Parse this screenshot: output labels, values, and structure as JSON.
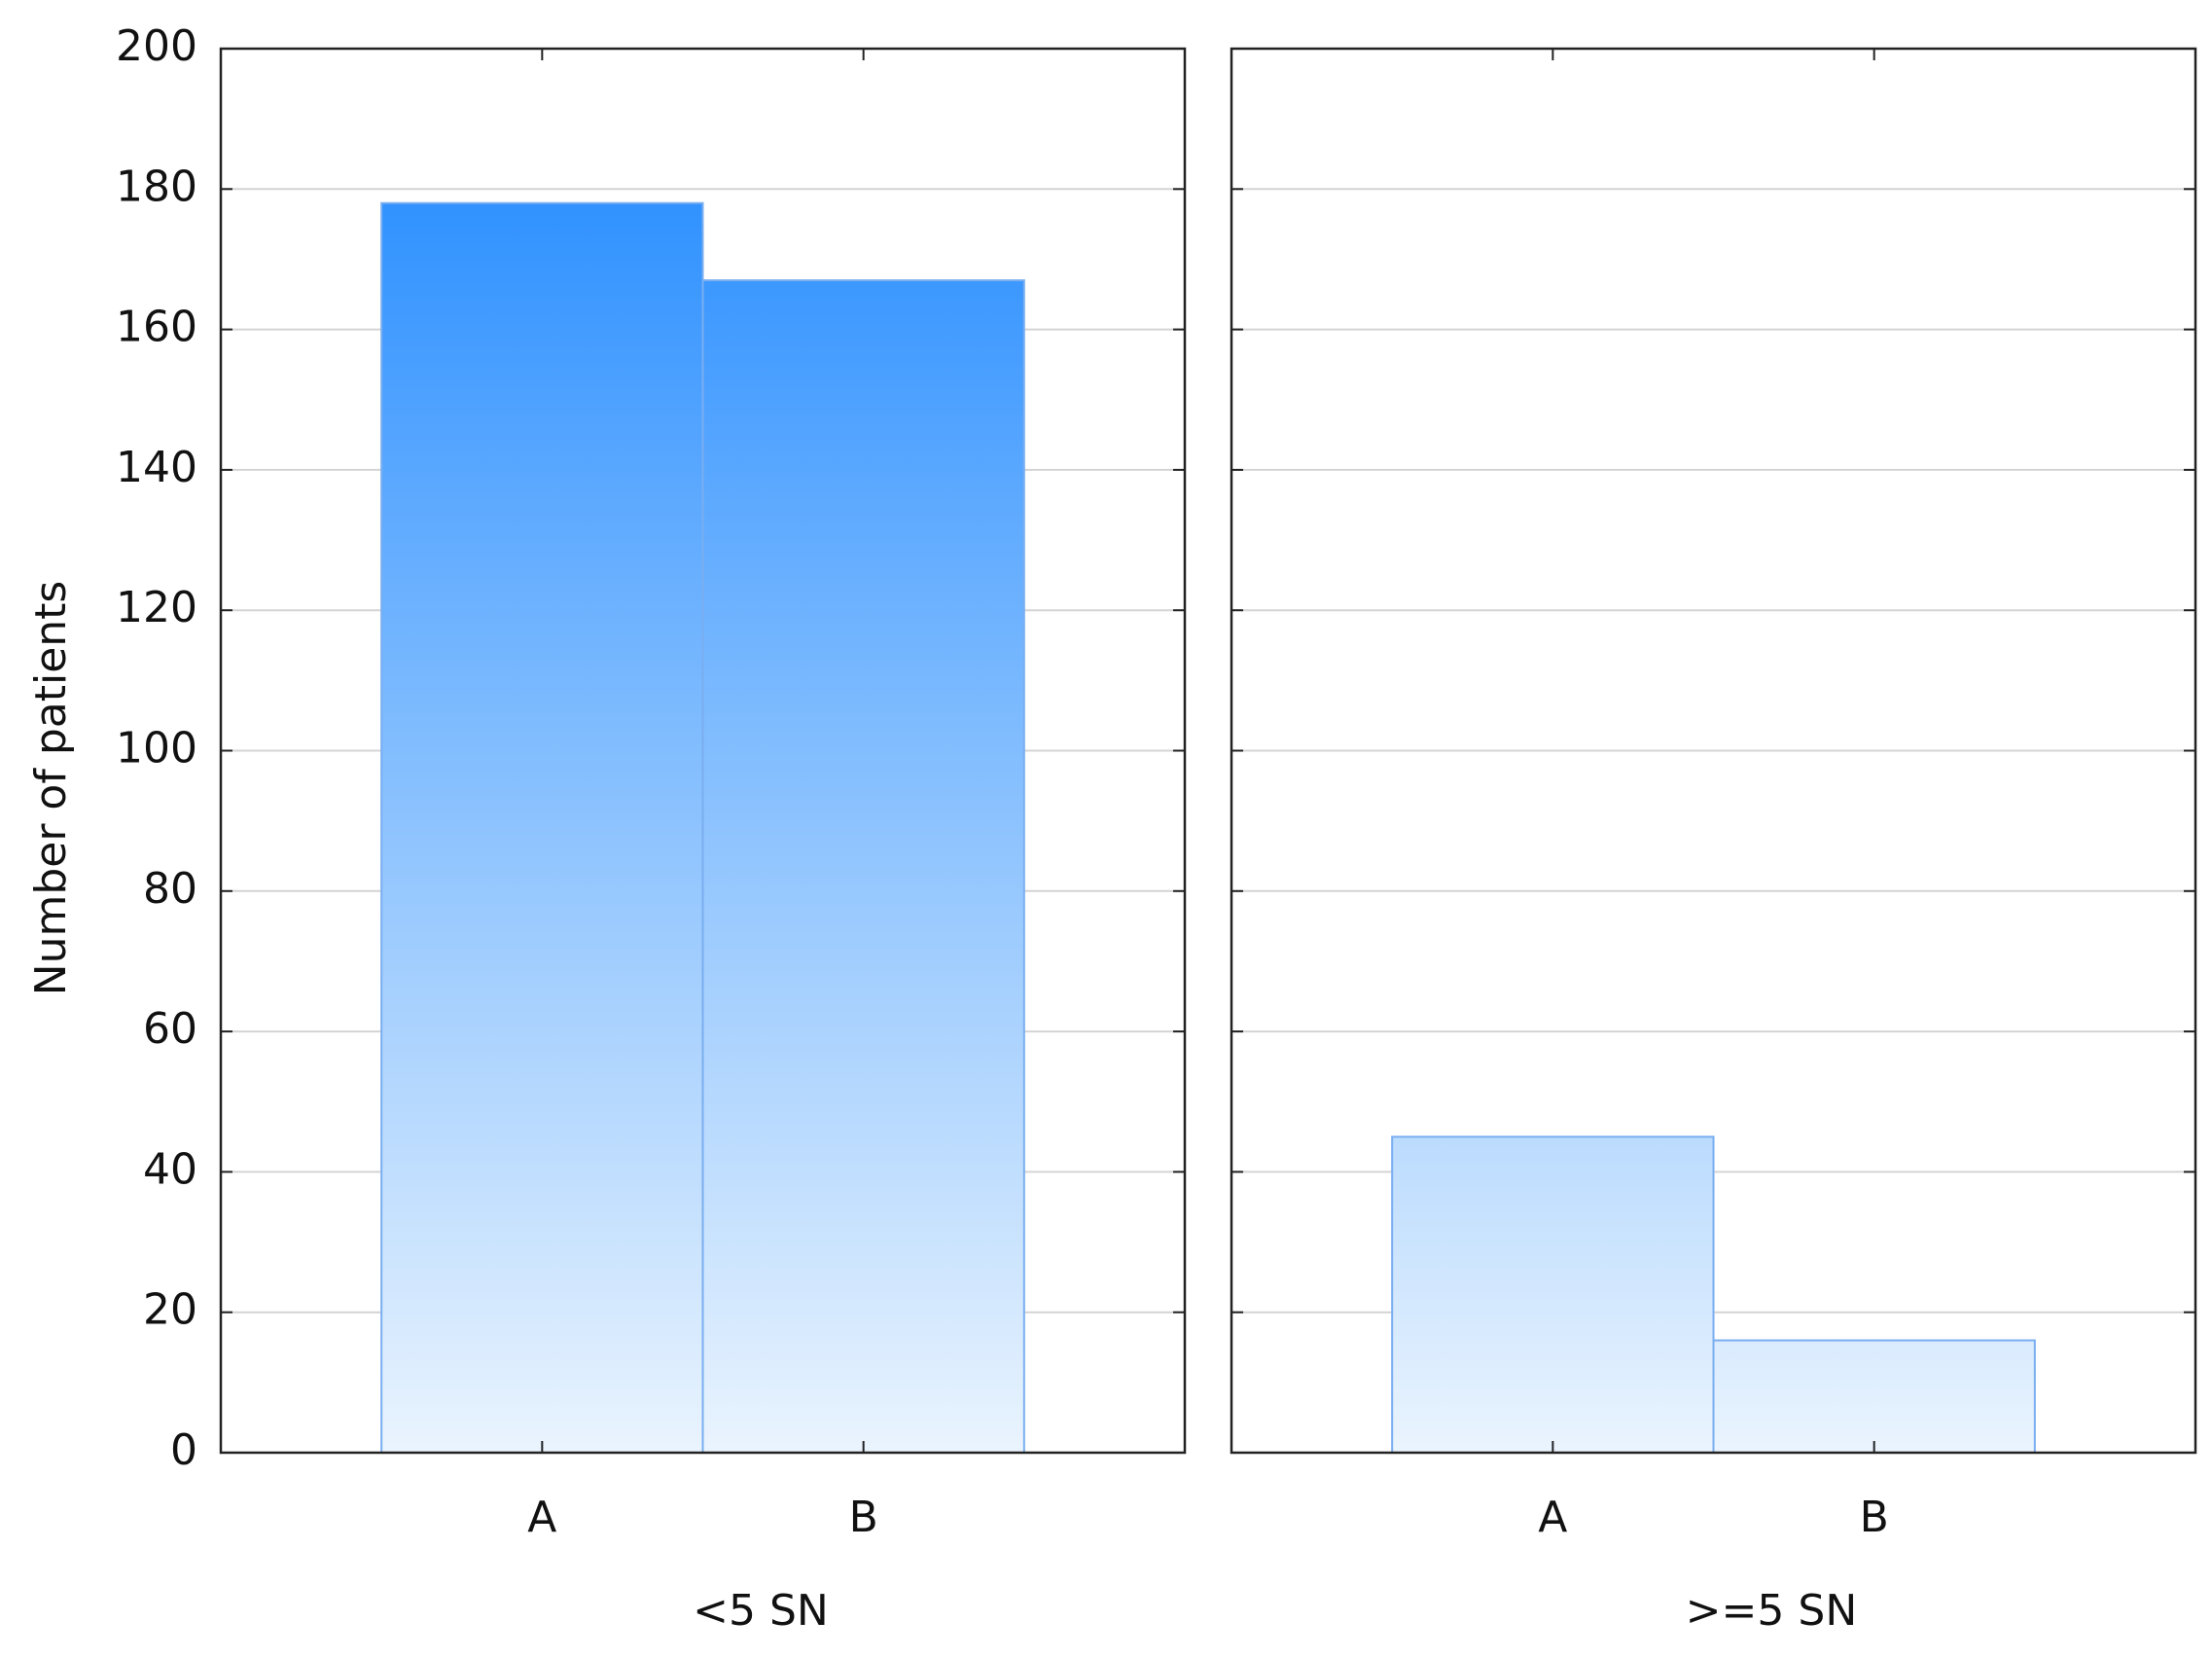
{
  "chart_data": {
    "type": "bar",
    "ylabel": "Number of patients",
    "ylim": [
      0,
      200
    ],
    "yticks": [
      0,
      20,
      40,
      60,
      80,
      100,
      120,
      140,
      160,
      180,
      200
    ],
    "grid": true,
    "gradient": [
      "#1a86ff",
      "#eaf4fe"
    ],
    "panels": [
      {
        "title": "<5 SN",
        "categories": [
          "A",
          "B"
        ],
        "values": [
          178,
          167
        ]
      },
      {
        "title": ">=5 SN",
        "categories": [
          "A",
          "B"
        ],
        "values": [
          45,
          16
        ]
      }
    ]
  }
}
